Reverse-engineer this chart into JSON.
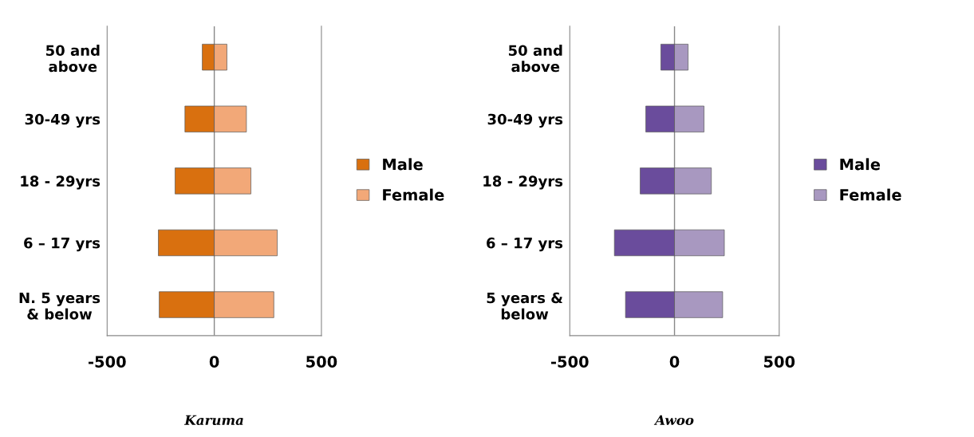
{
  "chart_data": [
    {
      "type": "bar",
      "orientation": "horizontal",
      "stacked": true,
      "title": "Karuma",
      "categories": [
        "50 and\nabove",
        "30-49 yrs",
        "18 - 29yrs",
        "6 – 17 yrs",
        "N. 5 years\n& below"
      ],
      "series": [
        {
          "name": "Male",
          "color": "#d9700f",
          "values": [
            -56,
            -137,
            -183,
            -261,
            -257
          ]
        },
        {
          "name": "Female",
          "color": "#f2a878",
          "values": [
            59,
            150,
            171,
            294,
            278
          ]
        }
      ],
      "xlim": [
        -500,
        500
      ],
      "xticks": [
        -500,
        0,
        500
      ],
      "legend": "right"
    },
    {
      "type": "bar",
      "orientation": "horizontal",
      "stacked": true,
      "title": "Awoo",
      "categories": [
        "50 and\nabove",
        "30-49 yrs",
        "18 - 29yrs",
        "6 – 17 yrs",
        "5 years &\nbelow"
      ],
      "series": [
        {
          "name": "Male",
          "color": "#6a4c9c",
          "values": [
            -65,
            -137,
            -164,
            -287,
            -234
          ]
        },
        {
          "name": "Female",
          "color": "#a898c0",
          "values": [
            65,
            141,
            176,
            238,
            230
          ]
        }
      ],
      "xlim": [
        -500,
        500
      ],
      "xticks": [
        -500,
        0,
        500
      ],
      "legend": "right"
    }
  ]
}
